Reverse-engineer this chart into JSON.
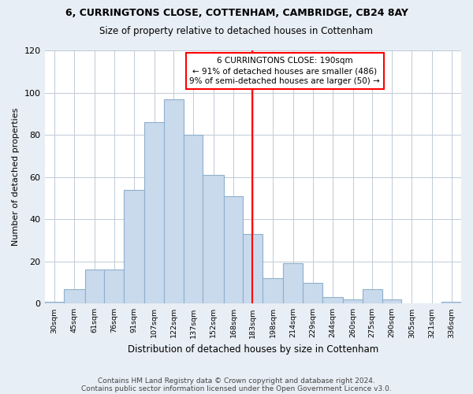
{
  "title1": "6, CURRINGTONS CLOSE, COTTENHAM, CAMBRIDGE, CB24 8AY",
  "title2": "Size of property relative to detached houses in Cottenham",
  "xlabel": "Distribution of detached houses by size in Cottenham",
  "ylabel": "Number of detached properties",
  "bin_labels": [
    "30sqm",
    "45sqm",
    "61sqm",
    "76sqm",
    "91sqm",
    "107sqm",
    "122sqm",
    "137sqm",
    "152sqm",
    "168sqm",
    "183sqm",
    "198sqm",
    "214sqm",
    "229sqm",
    "244sqm",
    "260sqm",
    "275sqm",
    "290sqm",
    "305sqm",
    "321sqm",
    "336sqm"
  ],
  "bin_edges": [
    30,
    45,
    61,
    76,
    91,
    107,
    122,
    137,
    152,
    168,
    183,
    198,
    214,
    229,
    244,
    260,
    275,
    290,
    305,
    321,
    336,
    351
  ],
  "bar_heights": [
    1,
    7,
    16,
    16,
    54,
    86,
    97,
    80,
    61,
    51,
    33,
    12,
    19,
    10,
    3,
    2,
    7,
    2,
    0,
    0,
    1
  ],
  "bar_color": "#c9daec",
  "bar_edgecolor": "#8fb0cc",
  "vline_x": 190,
  "vline_color": "red",
  "annotation_text": "6 CURRINGTONS CLOSE: 190sqm\n← 91% of detached houses are smaller (486)\n9% of semi-detached houses are larger (50) →",
  "annotation_box_color": "white",
  "annotation_box_edgecolor": "red",
  "ylim": [
    0,
    120
  ],
  "yticks": [
    0,
    20,
    40,
    60,
    80,
    100,
    120
  ],
  "footer1": "Contains HM Land Registry data © Crown copyright and database right 2024.",
  "footer2": "Contains public sector information licensed under the Open Government Licence v3.0.",
  "bg_color": "#e8eef5",
  "plot_bg_color": "white",
  "grid_color": "#c0cad5"
}
